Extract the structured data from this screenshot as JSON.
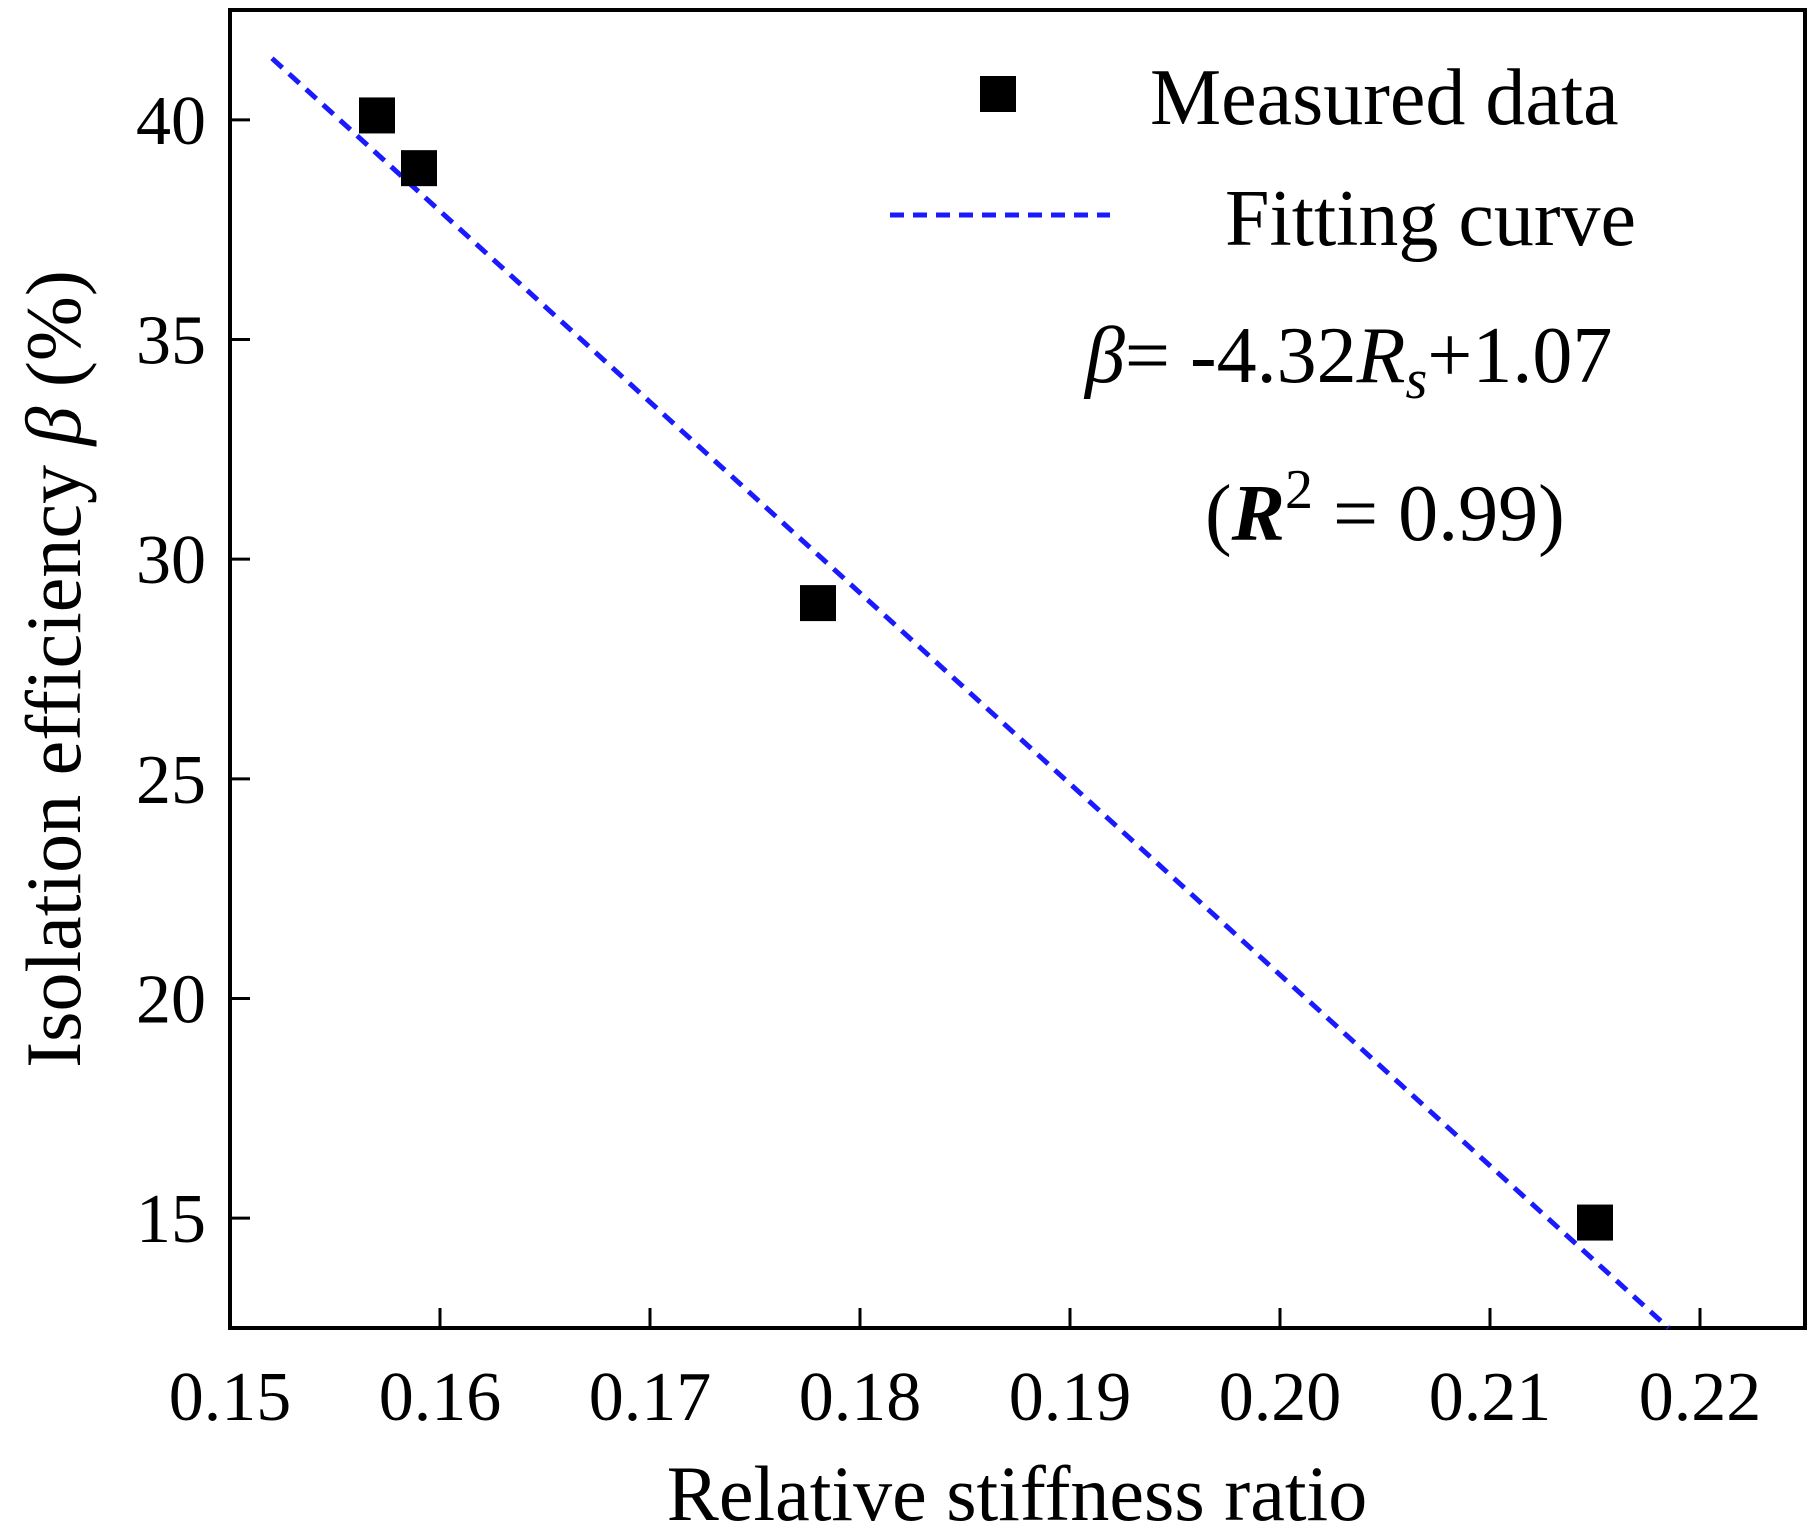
{
  "chart_data": {
    "type": "scatter",
    "title": "",
    "xlabel": "Relative stiffness ratio",
    "ylabel_prefix": "Isolation efficiency ",
    "ylabel_symbol": "β",
    "ylabel_suffix": " (%)",
    "xlim": [
      0.15,
      0.225
    ],
    "ylim": [
      12.5,
      42.5
    ],
    "xticks": [
      0.15,
      0.16,
      0.17,
      0.18,
      0.19,
      0.2,
      0.21,
      0.22
    ],
    "xtick_labels": [
      "0.15",
      "0.16",
      "0.17",
      "0.18",
      "0.19",
      "0.20",
      "0.21",
      "0.22"
    ],
    "yticks": [
      15,
      20,
      25,
      30,
      35,
      40
    ],
    "ytick_labels": [
      "15",
      "20",
      "25",
      "30",
      "35",
      "40"
    ],
    "grid": false,
    "legend_position": "top-right",
    "series": [
      {
        "name": "Measured data",
        "kind": "scatter",
        "marker": "square",
        "color": "#000000",
        "x": [
          0.157,
          0.159,
          0.178,
          0.215
        ],
        "y": [
          40.1,
          38.9,
          29.0,
          14.9
        ]
      },
      {
        "name": "Fitting curve",
        "kind": "line",
        "style": "dashed",
        "color": "#1a1aff",
        "x": [
          0.152,
          0.2185
        ],
        "y": [
          41.4,
          12.5
        ]
      }
    ],
    "annotation": {
      "eq_symbol": "β",
      "eq_rhs_a": "= -4.32",
      "eq_var": "R",
      "eq_sub": "s",
      "eq_rhs_b": "+1.07",
      "r2_open": "(",
      "r2_var": "R",
      "r2_sup": "2",
      "r2_rest": " = 0.99)"
    }
  }
}
